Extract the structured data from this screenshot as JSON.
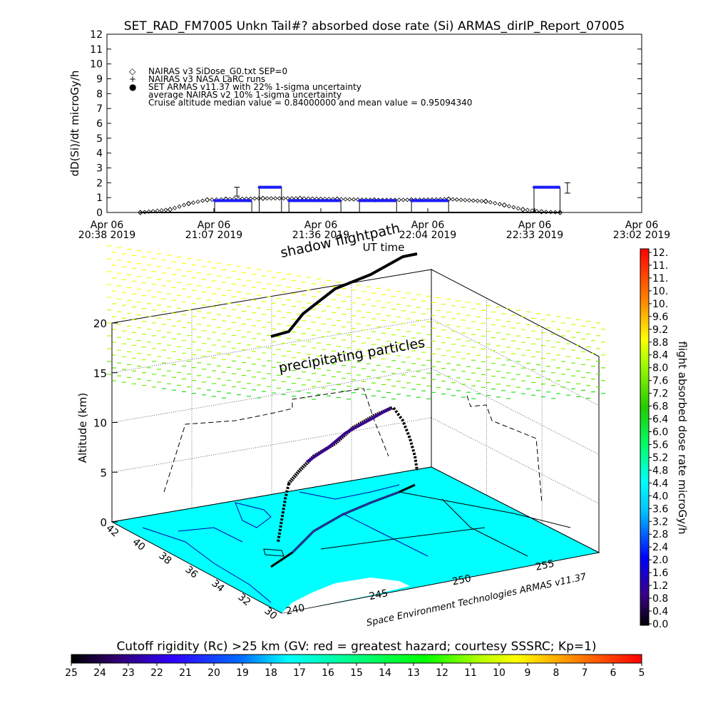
{
  "title": "SET_RAD_FM7005  Unkn Tail#? absorbed dose rate (Si) ARMAS_dirIP_Report_07005",
  "top_panel": {
    "ylabel": "dD(Si)/dt microGy/h",
    "yticks": [
      "0",
      "1",
      "2",
      "3",
      "4",
      "5",
      "6",
      "7",
      "8",
      "9",
      "10",
      "11",
      "12"
    ],
    "xticks": [
      {
        "d": "Apr 06",
        "t": "20:38 2019"
      },
      {
        "d": "Apr 06",
        "t": "21:07 2019"
      },
      {
        "d": "Apr 06",
        "t": "21:36 2019"
      },
      {
        "d": "Apr 06",
        "t": "22:04 2019"
      },
      {
        "d": "Apr 06",
        "t": "22:33 2019"
      },
      {
        "d": "Apr 06",
        "t": "23:02 2019"
      }
    ],
    "xlabel": "UT time",
    "legend": [
      {
        "symbol": "◇",
        "text": "NAIRAS v3 SiDose_G0.txt SEP=0"
      },
      {
        "symbol": "+",
        "text": "NAIRAS v3 NASA LaRC runs"
      },
      {
        "symbol": "●",
        "text": "SET ARMAS v11.37 with 22% 1-sigma uncertainty"
      },
      {
        "symbol": "",
        "text": "average NAIRAS v2 10% 1-sigma uncertainty"
      },
      {
        "symbol": "",
        "text": "Cruise altitude median value = 0.84000000 and mean value = 0.95094340"
      }
    ]
  },
  "map_panel": {
    "zlabel": "Altitude (km)",
    "zticks": [
      "0",
      "5",
      "10",
      "15",
      "20"
    ],
    "lat_ticks": [
      "42",
      "40",
      "38",
      "36",
      "34",
      "32",
      "30"
    ],
    "lon_ticks": [
      "240",
      "245",
      "250",
      "255"
    ],
    "shadow_label": "shadow flightpath",
    "particles_label": "precipitating particles",
    "credit": "Space Environment Technologies ARMAS v11.37"
  },
  "colorbar": {
    "label": "flight absorbed dose rate microGy/h",
    "ticks": [
      "12.",
      "11.",
      "11.",
      "10.",
      "10.",
      "9.6",
      "9.2",
      "8.8",
      "8.4",
      "8.0",
      "7.6",
      "7.2",
      "6.8",
      "6.4",
      "6.0",
      "5.6",
      "5.2",
      "4.8",
      "4.4",
      "4.0",
      "3.6",
      "3.2",
      "2.8",
      "2.4",
      "2.0",
      "1.6",
      "1.2",
      "0.8",
      "0.4",
      "0.0"
    ]
  },
  "bottom_bar": {
    "label": "Cutoff rigidity (Rc) >25 km (GV: red = greatest hazard; courtesy SSSRC; Kp=1)",
    "ticks": [
      "25",
      "24",
      "23",
      "22",
      "21",
      "20",
      "19",
      "18",
      "17",
      "16",
      "15",
      "14",
      "13",
      "12",
      "11",
      "10",
      "9",
      "8",
      "7",
      "6",
      "5"
    ]
  },
  "colors": {
    "armas": "#1010ee",
    "map": "#00ffff",
    "flight": "#000000"
  },
  "chart_data": [
    {
      "type": "scatter",
      "title": "SET_RAD_FM7005  Unkn Tail#? absorbed dose rate (Si) ARMAS_dirIP_Report_07005",
      "xlabel": "UT time",
      "ylabel": "dD(Si)/dt microGy/h",
      "xlim": [
        "20:38",
        "23:02"
      ],
      "ylim": [
        0,
        12
      ],
      "series": [
        {
          "name": "NAIRAS v3 SiDose_G0.txt SEP=0",
          "x": [
            "20:47",
            "20:55",
            "21:00",
            "21:05",
            "21:10",
            "21:20",
            "21:30",
            "21:40",
            "21:50",
            "22:00",
            "22:10",
            "22:20",
            "22:25",
            "22:30",
            "22:35",
            "22:40"
          ],
          "y": [
            0.0,
            0.2,
            0.6,
            0.85,
            0.9,
            0.95,
            0.95,
            0.9,
            0.85,
            0.85,
            0.9,
            0.75,
            0.5,
            0.2,
            0.05,
            0.0
          ]
        },
        {
          "name": "SET ARMAS v11.37 with 22% 1-sigma uncertainty",
          "segments": [
            {
              "x": [
                "21:07",
                "21:17"
              ],
              "y": 0.8
            },
            {
              "x": [
                "21:19",
                "21:25"
              ],
              "y": 1.7
            },
            {
              "x": [
                "21:27",
                "21:41"
              ],
              "y": 0.8
            },
            {
              "x": [
                "21:46",
                "21:56"
              ],
              "y": 0.8
            },
            {
              "x": [
                "22:00",
                "22:10"
              ],
              "y": 0.8
            },
            {
              "x": [
                "22:33",
                "22:40"
              ],
              "y": 1.7
            }
          ]
        }
      ]
    },
    {
      "type": "scatter",
      "title": "",
      "zlabel": "Altitude (km)",
      "zlim": [
        0,
        20
      ],
      "note": "3D flight path above map of western US",
      "series": [
        {
          "name": "flight altitude (km)",
          "y": [
            0,
            2,
            5,
            8,
            10,
            11,
            11.5,
            11,
            9,
            7,
            5
          ]
        }
      ]
    }
  ]
}
